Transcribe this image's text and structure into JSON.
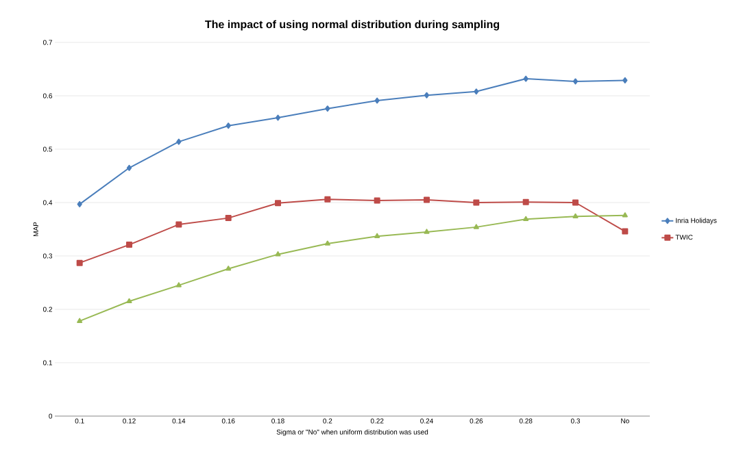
{
  "chart_data": {
    "type": "line",
    "title": "The impact of using normal distribution during sampling",
    "xlabel": "Sigma or \"No\" when uniform distribution was used",
    "ylabel": "MAP",
    "categories": [
      "0.1",
      "0.12",
      "0.14",
      "0.16",
      "0.18",
      "0.2",
      "0.22",
      "0.24",
      "0.26",
      "0.28",
      "0.3",
      "No"
    ],
    "series": [
      {
        "name": "Inria Holidays",
        "color": "#4a7ebb",
        "marker": "diamond",
        "values": [
          0.397,
          0.465,
          0.514,
          0.544,
          0.559,
          0.576,
          0.591,
          0.601,
          0.608,
          0.632,
          0.627,
          0.629
        ]
      },
      {
        "name": "TWIC",
        "color": "#be4b48",
        "marker": "square",
        "values": [
          0.287,
          0.321,
          0.359,
          0.371,
          0.399,
          0.406,
          0.404,
          0.405,
          0.4,
          0.401,
          0.4,
          0.346
        ]
      },
      {
        "color": "#98b954",
        "marker": "triangle",
        "values": [
          0.178,
          0.215,
          0.245,
          0.276,
          0.303,
          0.323,
          0.337,
          0.345,
          0.354,
          0.369,
          0.374,
          0.376
        ]
      }
    ],
    "ylim": [
      0,
      0.7
    ],
    "yticks": [
      0,
      0.1,
      0.2,
      0.3,
      0.4,
      0.5,
      0.6,
      0.7
    ],
    "grid": "y",
    "legend": "right"
  }
}
